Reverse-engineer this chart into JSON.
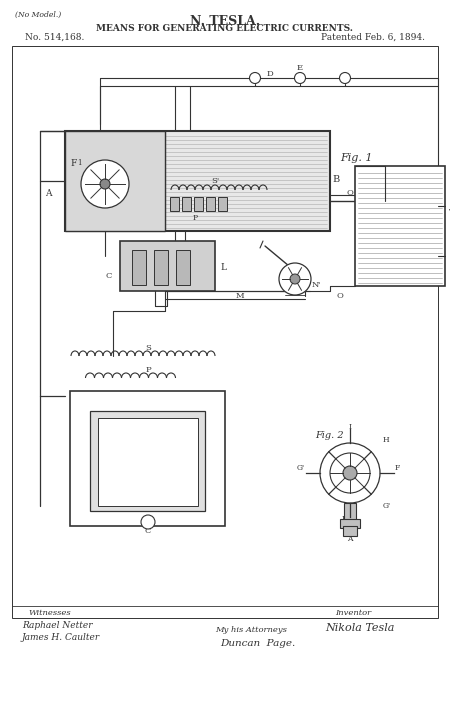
{
  "title_no_model": "(No Model.)",
  "title_name": "N. TESLA.",
  "title_invention": "MEANS FOR GENERATING ELECTRIC CURRENTS.",
  "title_no": "No. 514,168.",
  "title_date": "Patented Feb. 6, 1894.",
  "fig1_label": "Fig. 1",
  "fig2_label": "Fig. 2",
  "bg_color": "#ffffff",
  "line_color": "#333333",
  "fill_light": "#e8e8e8",
  "fill_medium": "#cccccc",
  "witnesses_label": "Witnesses",
  "witness1": "Raphael Netter",
  "witness2": "James H. Caulter",
  "inventor_label": "Inventor",
  "inventor_name": "Nikola Tesla",
  "attorney_label": "My his Attorneys",
  "attorney_name": "Duncan  Page."
}
